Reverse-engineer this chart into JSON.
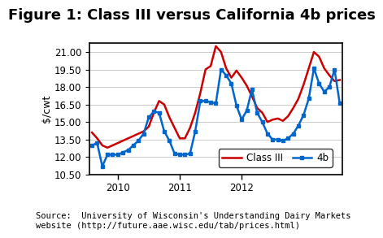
{
  "title": "Figure 1: Class III versus California 4b prices",
  "ylabel": "$/cwt",
  "source_text": "Source:  University of Wisconsin's Understanding Dairy Markets\nwebsite (http://future.aae.wisc.edu/tab/prices.html)",
  "yticks": [
    10.5,
    12.0,
    13.5,
    15.0,
    16.5,
    18.0,
    19.5,
    21.0
  ],
  "ylim": [
    10.5,
    21.75
  ],
  "xtick_labels": [
    "2010",
    "2011",
    "2012"
  ],
  "xtick_positions": [
    5,
    17,
    29
  ],
  "class3_color": "#cc0000",
  "ca4b_color": "#0066cc",
  "class3_data": [
    14.1,
    13.6,
    13.0,
    12.8,
    13.0,
    13.2,
    13.4,
    13.6,
    13.8,
    14.0,
    14.2,
    14.6,
    15.8,
    16.8,
    16.5,
    15.4,
    14.5,
    13.6,
    13.6,
    14.5,
    15.8,
    17.5,
    19.5,
    19.8,
    21.5,
    21.0,
    19.6,
    18.8,
    19.4,
    18.8,
    18.1,
    17.2,
    16.2,
    15.8,
    15.0,
    15.2,
    15.3,
    15.1,
    15.5,
    16.2,
    17.0,
    18.2,
    19.6,
    21.0,
    20.6,
    19.6,
    19.0,
    18.5,
    18.6
  ],
  "ca4b_data": [
    13.0,
    13.2,
    11.2,
    12.2,
    12.2,
    12.2,
    12.4,
    12.6,
    13.0,
    13.4,
    14.0,
    15.4,
    15.9,
    15.8,
    14.2,
    13.4,
    12.3,
    12.2,
    12.2,
    12.3,
    14.2,
    16.8,
    16.8,
    16.7,
    16.6,
    19.5,
    19.0,
    18.3,
    16.4,
    15.2,
    16.0,
    17.8,
    15.8,
    15.0,
    14.0,
    13.5,
    13.5,
    13.4,
    13.6,
    14.0,
    14.7,
    15.6,
    17.0,
    19.6,
    18.3,
    17.6,
    18.0,
    19.5,
    16.6
  ],
  "n_points": 49,
  "background_color": "#ffffff",
  "plot_bg": "#ffffff",
  "border_color": "#000000",
  "title_fontsize": 13,
  "axis_fontsize": 9,
  "tick_fontsize": 8.5,
  "source_fontsize": 7.5
}
